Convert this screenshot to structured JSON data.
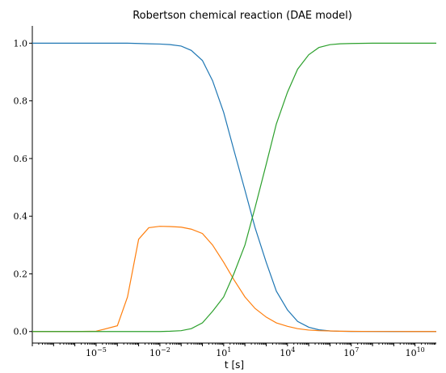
{
  "chart_data": {
    "type": "line",
    "title": "Robertson chemical reaction (DAE model)",
    "xlabel": "t [s]",
    "ylabel": "",
    "x_scale": "log",
    "xlim": [
      1e-08,
      100000000000.0
    ],
    "ylim": [
      -0.04,
      1.06
    ],
    "grid": false,
    "x_ticks": [
      {
        "value": 1e-05,
        "base": "10",
        "exp": "−5"
      },
      {
        "value": 0.01,
        "base": "10",
        "exp": "−2"
      },
      {
        "value": 10.0,
        "base": "10",
        "exp": "1"
      },
      {
        "value": 10000.0,
        "base": "10",
        "exp": "4"
      },
      {
        "value": 10000000.0,
        "base": "10",
        "exp": "7"
      },
      {
        "value": 10000000000.0,
        "base": "10",
        "exp": "10"
      }
    ],
    "y_ticks": [
      "0.0",
      "0.2",
      "0.4",
      "0.6",
      "0.8",
      "1.0"
    ],
    "x": [
      1e-08,
      1e-07,
      1e-06,
      1e-05,
      0.0001,
      0.0003,
      0.001,
      0.003,
      0.01,
      0.03,
      0.1,
      0.3,
      1.0,
      3.0,
      10.0,
      30.0,
      100.0,
      300.0,
      1000.0,
      3000.0,
      10000.0,
      30000.0,
      100000.0,
      300000.0,
      1000000.0,
      3000000.0,
      10000000.0,
      100000000.0,
      1000000000.0,
      10000000000.0,
      100000000000.0
    ],
    "series": [
      {
        "color": "#1f77b4",
        "values": [
          1.0,
          1.0,
          1.0,
          1.0,
          1.0,
          1.0,
          0.999,
          0.998,
          0.997,
          0.995,
          0.99,
          0.975,
          0.94,
          0.87,
          0.76,
          0.63,
          0.49,
          0.36,
          0.24,
          0.14,
          0.075,
          0.035,
          0.015,
          0.006,
          0.002,
          0.0008,
          0.0003,
          0.0001,
          0.0,
          0.0,
          0.0
        ]
      },
      {
        "color": "#ff7f0e",
        "values": [
          0.0,
          0.0,
          0.0,
          0.001,
          0.02,
          0.12,
          0.32,
          0.36,
          0.365,
          0.364,
          0.362,
          0.355,
          0.34,
          0.3,
          0.24,
          0.18,
          0.12,
          0.08,
          0.05,
          0.03,
          0.018,
          0.01,
          0.005,
          0.003,
          0.002,
          0.001,
          0.0006,
          0.0002,
          0.0001,
          0.0,
          0.0
        ]
      },
      {
        "color": "#2ca02c",
        "values": [
          0.0,
          0.0,
          0.0,
          0.0,
          0.0,
          0.0,
          0.0,
          0.0,
          0.0,
          0.001,
          0.003,
          0.01,
          0.03,
          0.07,
          0.12,
          0.2,
          0.3,
          0.43,
          0.58,
          0.72,
          0.83,
          0.91,
          0.96,
          0.985,
          0.995,
          0.998,
          0.999,
          1.0,
          1.0,
          1.0,
          1.0
        ]
      }
    ]
  }
}
